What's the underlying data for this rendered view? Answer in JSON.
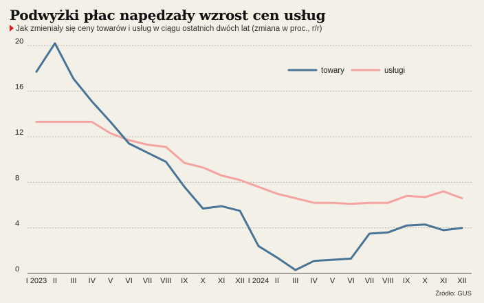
{
  "title": "Podwyżki płac napędzały wzrost cen usług",
  "subtitle": "Jak zmieniały się ceny towarów i usług w ciągu ostatnich dwóch lat (zmiana w proc., r/r)",
  "source": "Źródło: GUS",
  "colors": {
    "towary": "#4a7496",
    "uslugi": "#f4a3a0",
    "marker": "#d71920",
    "grid": "#b8b3a8"
  },
  "chart_data": {
    "type": "line",
    "title": "Podwyżki płac napędzały wzrost cen usług",
    "subtitle": "Jak zmieniały się ceny towarów i usług w ciągu ostatnich dwóch lat (zmiana w proc., r/r)",
    "categories": [
      "I 2023",
      "II",
      "III",
      "IV",
      "V",
      "VI",
      "VII",
      "VIII",
      "IX",
      "X",
      "XI",
      "XII",
      "I 2024",
      "II",
      "III",
      "IV",
      "V",
      "VI",
      "VII",
      "VIII",
      "IX",
      "X",
      "XI",
      "XII"
    ],
    "y_ticks": [
      0,
      4,
      8,
      12,
      16,
      20
    ],
    "ylim": [
      0,
      20.5
    ],
    "grid": true,
    "legend_position": "top-right",
    "series": [
      {
        "name": "towary",
        "values": [
          17.7,
          20.2,
          17.1,
          15.1,
          13.3,
          11.4,
          10.6,
          9.8,
          7.6,
          5.7,
          5.9,
          5.5,
          2.4,
          1.4,
          0.3,
          1.1,
          1.2,
          1.3,
          3.5,
          3.6,
          4.2,
          4.3,
          3.8,
          4.0
        ]
      },
      {
        "name": "usługi",
        "values": [
          13.3,
          13.3,
          13.3,
          13.3,
          12.3,
          11.7,
          11.3,
          11.1,
          9.7,
          9.3,
          8.6,
          8.2,
          7.6,
          7.0,
          6.6,
          6.2,
          6.2,
          6.1,
          6.2,
          6.2,
          6.8,
          6.7,
          7.2,
          6.6
        ]
      }
    ]
  }
}
